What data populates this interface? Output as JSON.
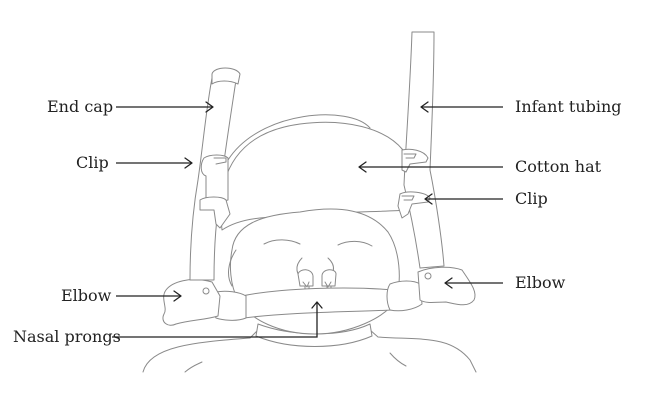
{
  "labels": {
    "end_cap": "End cap",
    "clip_left": "Clip",
    "elbow_left": "Elbow",
    "nasal_prongs": "Nasal prongs",
    "infant_tubing": "Infant tubing",
    "cotton_hat": "Cotton hat",
    "clip_right": "Clip",
    "elbow_right": "Elbow"
  },
  "colors": {
    "line_art": "#8a8a8a",
    "arrows": "#222222",
    "text": "#222222"
  }
}
